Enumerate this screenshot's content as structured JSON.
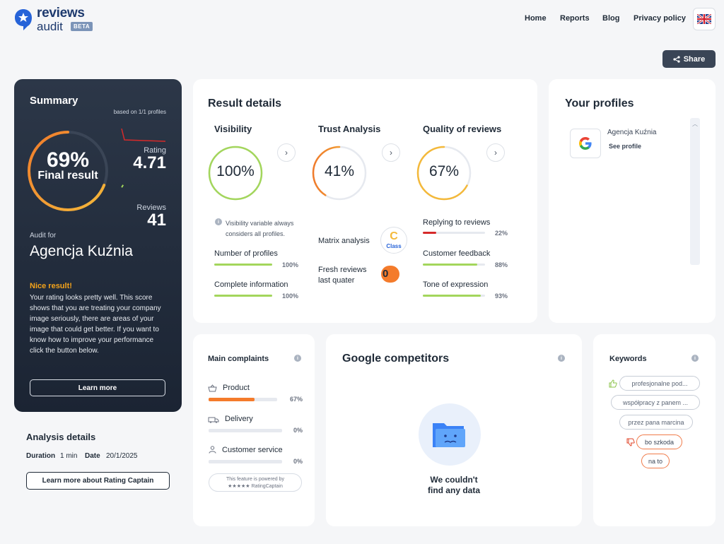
{
  "brand": {
    "word1": "reviews",
    "word2": "audit",
    "badge": "BETA"
  },
  "nav": {
    "home": "Home",
    "reports": "Reports",
    "blog": "Blog",
    "privacy": "Privacy policy"
  },
  "share_label": "Share",
  "summary": {
    "title": "Summary",
    "based_on": "based on 1/1 profiles",
    "final_pct": "69%",
    "final_label": "Final result",
    "final_value": 0.69,
    "rating_label": "Rating",
    "rating_value": "4.71",
    "reviews_label": "Reviews",
    "reviews_value": "41",
    "audit_for": "Audit for",
    "company": "Agencja Kuźnia",
    "nice_title": "Nice result!",
    "nice_text": "Your rating looks pretty well. This score shows that you are treating your company image seriously, there are areas of your image that could get better. If you want to know how to improve your performance click the button below.",
    "learn_more": "Learn more"
  },
  "analysis": {
    "title": "Analysis details",
    "duration_label": "Duration",
    "duration_value": "1 min",
    "date_label": "Date",
    "date_value": "20/1/2025",
    "button": "Learn more about Rating Captain"
  },
  "result": {
    "title": "Result details",
    "visibility": {
      "title": "Visibility",
      "pct": "100%",
      "value": 1.0,
      "note": "Visibility variable always considers all profiles.",
      "items": [
        {
          "label": "Number of profiles",
          "pct": "100%",
          "value": 1.0
        },
        {
          "label": "Complete information",
          "pct": "100%",
          "value": 1.0
        }
      ]
    },
    "trust": {
      "title": "Trust Analysis",
      "pct": "41%",
      "value": 0.41,
      "matrix_label": "Matrix analysis",
      "matrix_class_letter": "C",
      "matrix_class_word": "Class",
      "fresh_label_1": "Fresh reviews",
      "fresh_label_2": "last quater",
      "fresh_value": "0"
    },
    "quality": {
      "title": "Quality of reviews",
      "pct": "67%",
      "value": 0.67,
      "items": [
        {
          "label": "Replying to reviews",
          "pct": "22%",
          "value": 0.22
        },
        {
          "label": "Customer feedback",
          "pct": "88%",
          "value": 0.88
        },
        {
          "label": "Tone of expression",
          "pct": "93%",
          "value": 0.93
        }
      ]
    }
  },
  "profiles": {
    "title": "Your profiles",
    "items": [
      {
        "name": "Agencja Kuźnia",
        "link": "See profile",
        "icon": "google-icon"
      }
    ]
  },
  "complaints": {
    "title": "Main complaints",
    "items": [
      {
        "label": "Product",
        "pct": "67%",
        "value": 0.67,
        "icon": "basket-icon"
      },
      {
        "label": "Delivery",
        "pct": "0%",
        "value": 0,
        "icon": "truck-icon"
      },
      {
        "label": "Customer service",
        "pct": "0%",
        "value": 0,
        "icon": "person-icon"
      }
    ],
    "powered_line1": "This feature is powered by",
    "powered_line2": "RatingCaptain"
  },
  "competitors": {
    "title": "Google competitors",
    "empty_line1": "We couldn't",
    "empty_line2": "find any data"
  },
  "keywords": {
    "title": "Keywords",
    "positive": [
      "profesjonalne pod...",
      "współpracy z panem ...",
      "przez pana marcina"
    ],
    "negative": [
      "bo szkoda",
      "na to"
    ]
  },
  "colors": {
    "green": "#a3d65c",
    "orange": "#f47b2b",
    "yellow": "#f4b93a",
    "red": "#d62a2a",
    "dark": "#2c3748"
  }
}
